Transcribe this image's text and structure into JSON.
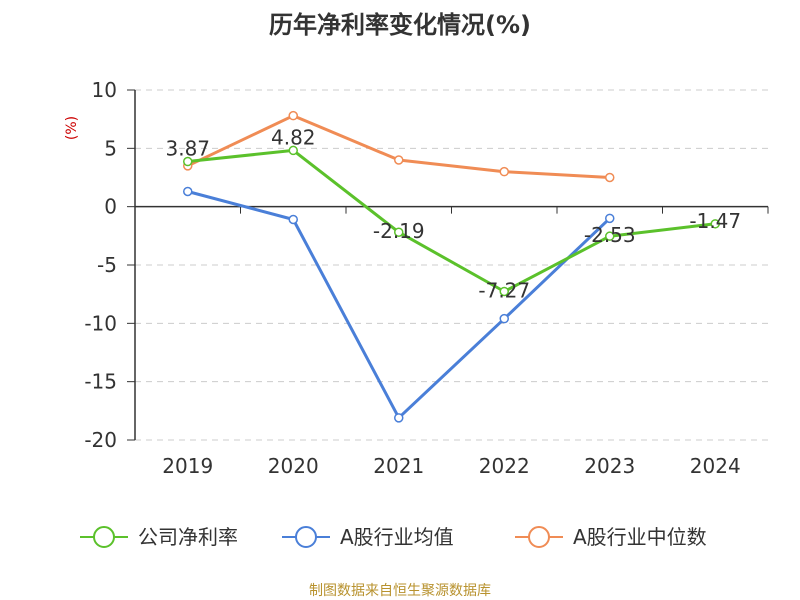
{
  "chart_data": {
    "type": "line",
    "title": "历年净利率变化情况(%)",
    "ylabel": "(%)",
    "xlabel": "",
    "categories": [
      "2019",
      "2020",
      "2021",
      "2022",
      "2023",
      "2024"
    ],
    "ylim": [
      -20,
      10
    ],
    "yticks": [
      10,
      5,
      0,
      -5,
      -10,
      -15,
      -20
    ],
    "grid": true,
    "legend_position": "bottom",
    "series": [
      {
        "name": "公司净利率",
        "color": "#5bc12b",
        "values": [
          3.87,
          4.82,
          -2.19,
          -7.27,
          -2.53,
          -1.47
        ],
        "labels": [
          "3.87",
          "4.82",
          "-2.19",
          "-7.27",
          "-2.53",
          "-1.47"
        ]
      },
      {
        "name": "A股行业均值",
        "color": "#4a7fd8",
        "values": [
          1.3,
          -1.1,
          -18.1,
          -9.6,
          -1.0,
          null
        ]
      },
      {
        "name": "A股行业中位数",
        "color": "#f08c55",
        "values": [
          3.5,
          7.8,
          4.0,
          3.0,
          2.5,
          null
        ]
      }
    ]
  },
  "source": "制图数据来自恒生聚源数据库"
}
